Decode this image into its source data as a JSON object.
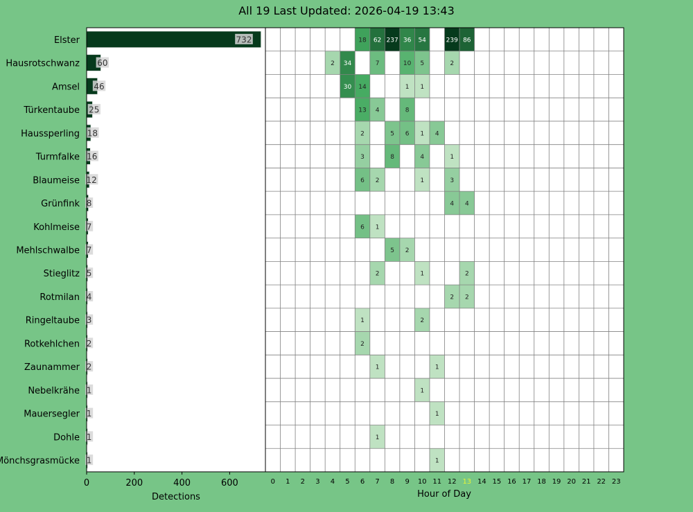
{
  "title": "All 19 Last Updated: 2026-04-19 13:43",
  "colors": {
    "background": "#77c587",
    "bar_fill": "#063a1c",
    "heat_low": "#e8f5e3",
    "heat_high": "#063a1c",
    "current_hour_label": "#e6f536",
    "grid": "#808080",
    "label_box": "#d6d6d6"
  },
  "current_hour": 13,
  "chart_data": [
    {
      "type": "bar",
      "orientation": "horizontal",
      "xlabel": "Detections",
      "xlim": [
        0,
        750
      ],
      "xticks": [
        0,
        200,
        400,
        600
      ],
      "categories": [
        "Elster",
        "Hausrotschwanz",
        "Amsel",
        "Türkentaube",
        "Haussperling",
        "Turmfalke",
        "Blaumeise",
        "Grünfink",
        "Kohlmeise",
        "Mehlschwalbe",
        "Stieglitz",
        "Rotmilan",
        "Ringeltaube",
        "Rotkehlchen",
        "Zaunammer",
        "Nebelkrähe",
        "Mauersegler",
        "Dohle",
        "Mönchsgrasmücke"
      ],
      "values": [
        732,
        60,
        46,
        25,
        18,
        16,
        12,
        8,
        7,
        7,
        5,
        4,
        3,
        2,
        2,
        1,
        1,
        1,
        1
      ]
    },
    {
      "type": "heatmap",
      "xlabel": "Hour of Day",
      "x": [
        0,
        1,
        2,
        3,
        4,
        5,
        6,
        7,
        8,
        9,
        10,
        11,
        12,
        13,
        14,
        15,
        16,
        17,
        18,
        19,
        20,
        21,
        22,
        23
      ],
      "y": [
        "Elster",
        "Hausrotschwanz",
        "Amsel",
        "Türkentaube",
        "Haussperling",
        "Turmfalke",
        "Blaumeise",
        "Grünfink",
        "Kohlmeise",
        "Mehlschwalbe",
        "Stieglitz",
        "Rotmilan",
        "Ringeltaube",
        "Rotkehlchen",
        "Zaunammer",
        "Nebelkrähe",
        "Mauersegler",
        "Dohle",
        "Mönchsgrasmücke"
      ],
      "values": [
        [
          0,
          0,
          0,
          0,
          0,
          0,
          18,
          62,
          237,
          36,
          54,
          0,
          239,
          86,
          0,
          0,
          0,
          0,
          0,
          0,
          0,
          0,
          0,
          0
        ],
        [
          0,
          0,
          0,
          0,
          2,
          34,
          0,
          7,
          0,
          10,
          5,
          0,
          2,
          0,
          0,
          0,
          0,
          0,
          0,
          0,
          0,
          0,
          0,
          0
        ],
        [
          0,
          0,
          0,
          0,
          0,
          30,
          14,
          0,
          0,
          1,
          1,
          0,
          0,
          0,
          0,
          0,
          0,
          0,
          0,
          0,
          0,
          0,
          0,
          0
        ],
        [
          0,
          0,
          0,
          0,
          0,
          0,
          13,
          4,
          0,
          8,
          0,
          0,
          0,
          0,
          0,
          0,
          0,
          0,
          0,
          0,
          0,
          0,
          0,
          0
        ],
        [
          0,
          0,
          0,
          0,
          0,
          0,
          2,
          0,
          5,
          6,
          1,
          4,
          0,
          0,
          0,
          0,
          0,
          0,
          0,
          0,
          0,
          0,
          0,
          0
        ],
        [
          0,
          0,
          0,
          0,
          0,
          0,
          3,
          0,
          8,
          0,
          4,
          0,
          1,
          0,
          0,
          0,
          0,
          0,
          0,
          0,
          0,
          0,
          0,
          0
        ],
        [
          0,
          0,
          0,
          0,
          0,
          0,
          6,
          2,
          0,
          0,
          1,
          0,
          3,
          0,
          0,
          0,
          0,
          0,
          0,
          0,
          0,
          0,
          0,
          0
        ],
        [
          0,
          0,
          0,
          0,
          0,
          0,
          0,
          0,
          0,
          0,
          0,
          0,
          4,
          4,
          0,
          0,
          0,
          0,
          0,
          0,
          0,
          0,
          0,
          0
        ],
        [
          0,
          0,
          0,
          0,
          0,
          0,
          6,
          1,
          0,
          0,
          0,
          0,
          0,
          0,
          0,
          0,
          0,
          0,
          0,
          0,
          0,
          0,
          0,
          0
        ],
        [
          0,
          0,
          0,
          0,
          0,
          0,
          0,
          0,
          5,
          2,
          0,
          0,
          0,
          0,
          0,
          0,
          0,
          0,
          0,
          0,
          0,
          0,
          0,
          0
        ],
        [
          0,
          0,
          0,
          0,
          0,
          0,
          0,
          2,
          0,
          0,
          1,
          0,
          0,
          2,
          0,
          0,
          0,
          0,
          0,
          0,
          0,
          0,
          0,
          0
        ],
        [
          0,
          0,
          0,
          0,
          0,
          0,
          0,
          0,
          0,
          0,
          0,
          0,
          2,
          2,
          0,
          0,
          0,
          0,
          0,
          0,
          0,
          0,
          0,
          0
        ],
        [
          0,
          0,
          0,
          0,
          0,
          0,
          1,
          0,
          0,
          0,
          2,
          0,
          0,
          0,
          0,
          0,
          0,
          0,
          0,
          0,
          0,
          0,
          0,
          0
        ],
        [
          0,
          0,
          0,
          0,
          0,
          0,
          2,
          0,
          0,
          0,
          0,
          0,
          0,
          0,
          0,
          0,
          0,
          0,
          0,
          0,
          0,
          0,
          0,
          0
        ],
        [
          0,
          0,
          0,
          0,
          0,
          0,
          0,
          1,
          0,
          0,
          0,
          1,
          0,
          0,
          0,
          0,
          0,
          0,
          0,
          0,
          0,
          0,
          0,
          0
        ],
        [
          0,
          0,
          0,
          0,
          0,
          0,
          0,
          0,
          0,
          0,
          1,
          0,
          0,
          0,
          0,
          0,
          0,
          0,
          0,
          0,
          0,
          0,
          0,
          0
        ],
        [
          0,
          0,
          0,
          0,
          0,
          0,
          0,
          0,
          0,
          0,
          0,
          1,
          0,
          0,
          0,
          0,
          0,
          0,
          0,
          0,
          0,
          0,
          0,
          0
        ],
        [
          0,
          0,
          0,
          0,
          0,
          0,
          0,
          1,
          0,
          0,
          0,
          0,
          0,
          0,
          0,
          0,
          0,
          0,
          0,
          0,
          0,
          0,
          0,
          0
        ],
        [
          0,
          0,
          0,
          0,
          0,
          0,
          0,
          0,
          0,
          0,
          0,
          1,
          0,
          0,
          0,
          0,
          0,
          0,
          0,
          0,
          0,
          0,
          0,
          0
        ]
      ]
    }
  ]
}
